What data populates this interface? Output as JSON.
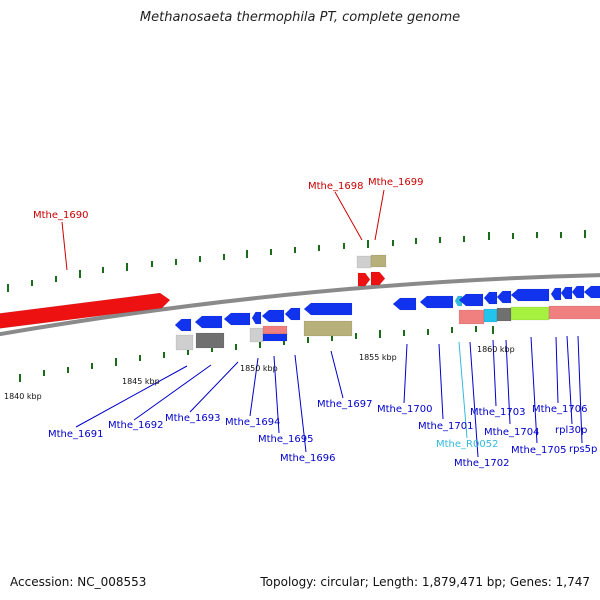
{
  "title": "Methanosaeta thermophila PT, complete genome",
  "footer": {
    "accession": "Accession: NC_008553",
    "topology": "Topology: circular; Length: 1,879,471 bp; Genes: 1,747"
  },
  "colors": {
    "backbone": "#8a8a8a",
    "tick": "#1a6b1a",
    "forward_label": "#cc0000",
    "reverse_label": "#0000cc",
    "rna_label": "#33bbdd",
    "red_gene": "#ee1111",
    "blue_gene": "#1133ee"
  },
  "scale_labels": [
    {
      "text": "1840 kbp"
    },
    {
      "text": "1845 kbp"
    },
    {
      "text": "1850 kbp"
    },
    {
      "text": "1855 kbp"
    },
    {
      "text": "1860 kbp"
    }
  ],
  "forward_labels": [
    {
      "text": "Mthe_1690"
    },
    {
      "text": "Mthe_1698"
    },
    {
      "text": "Mthe_1699"
    }
  ],
  "reverse_labels": [
    {
      "text": "Mthe_1691"
    },
    {
      "text": "Mthe_1692"
    },
    {
      "text": "Mthe_1693"
    },
    {
      "text": "Mthe_1694"
    },
    {
      "text": "Mthe_1695"
    },
    {
      "text": "Mthe_1696"
    },
    {
      "text": "Mthe_1697"
    },
    {
      "text": "Mthe_1700"
    },
    {
      "text": "Mthe_1701"
    },
    {
      "text": "Mthe_R0052"
    },
    {
      "text": "Mthe_1702"
    },
    {
      "text": "Mthe_1703"
    },
    {
      "text": "Mthe_1704"
    },
    {
      "text": "Mthe_1705"
    },
    {
      "text": "Mthe_1706"
    },
    {
      "text": "rpl30p"
    },
    {
      "text": "rps5p"
    }
  ]
}
